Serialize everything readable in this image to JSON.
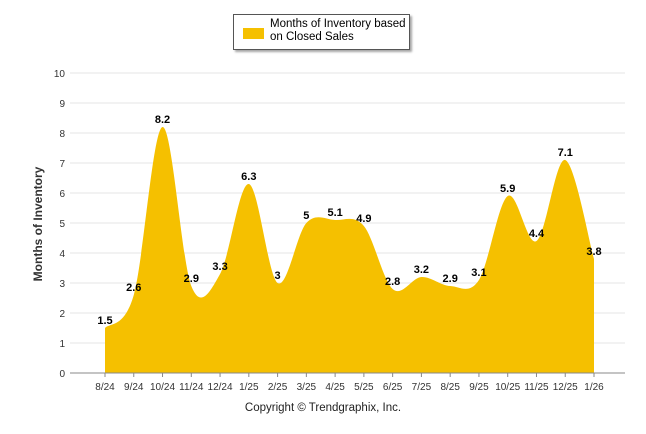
{
  "chart_data": {
    "type": "area",
    "legend": "Months of Inventory based on Closed Sales",
    "ylabel": "Months of Inventory",
    "xlabel": "",
    "ylim": [
      0,
      10
    ],
    "yticks": [
      0,
      1,
      2,
      3,
      4,
      5,
      6,
      7,
      8,
      9,
      10
    ],
    "categories": [
      "8/24",
      "9/24",
      "10/24",
      "11/24",
      "12/24",
      "1/25",
      "2/25",
      "3/25",
      "4/25",
      "5/25",
      "6/25",
      "7/25",
      "8/25",
      "9/25",
      "10/25",
      "11/25",
      "12/25",
      "1/26"
    ],
    "series": [
      {
        "name": "Months of Inventory based on Closed Sales",
        "values": [
          1.5,
          2.6,
          8.2,
          2.9,
          3.3,
          6.3,
          3,
          5,
          5.1,
          4.9,
          2.8,
          3.2,
          2.9,
          3.1,
          5.9,
          4.4,
          7.1,
          3.8
        ],
        "color": "#F5C000"
      }
    ],
    "grid": true
  },
  "footer": "Copyright © Trendgraphix, Inc."
}
